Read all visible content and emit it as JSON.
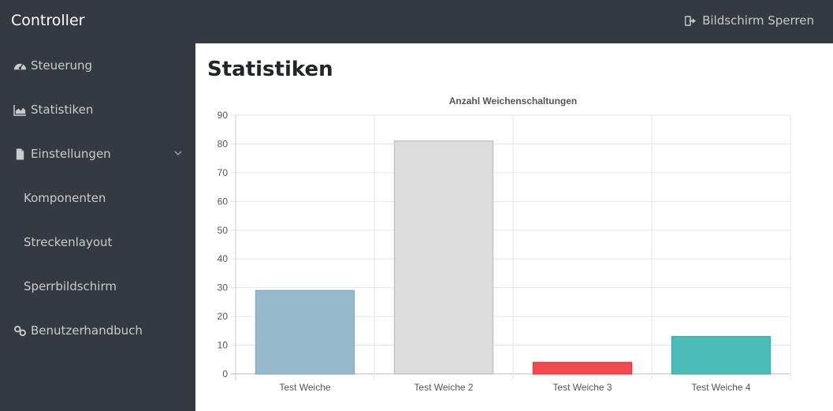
{
  "header": {
    "brand": "Controller",
    "lock_label": "Bildschirm Sperren",
    "lock_icon": "sign-out-icon"
  },
  "sidebar": {
    "items": [
      {
        "label": "Steuerung",
        "icon": "dashboard-icon"
      },
      {
        "label": "Statistiken",
        "icon": "area-chart-icon"
      },
      {
        "label": "Einstellungen",
        "icon": "file-icon",
        "expanded": true
      },
      {
        "label": "Komponenten"
      },
      {
        "label": "Streckenlayout"
      },
      {
        "label": "Sperrbildschirm"
      },
      {
        "label": "Benutzerhandbuch",
        "icon": "link-icon"
      }
    ]
  },
  "main": {
    "title": "Statistiken"
  },
  "colors": {
    "sidebar_bg": "#343a40",
    "bar_1": "#97b9cc",
    "bar_2": "#dddddd",
    "bar_3": "#f24a4c",
    "bar_4": "#4bbdb9"
  },
  "chart_data": {
    "type": "bar",
    "title": "Anzahl Weichenschaltungen",
    "categories": [
      "Test Weiche",
      "Test Weiche 2",
      "Test Weiche 3",
      "Test Weiche 4"
    ],
    "values": [
      29,
      81,
      4,
      13
    ],
    "ylim": [
      0,
      90
    ],
    "yticks": [
      0,
      10,
      20,
      30,
      40,
      50,
      60,
      70,
      80,
      90
    ],
    "grid": true,
    "legend": "none"
  }
}
